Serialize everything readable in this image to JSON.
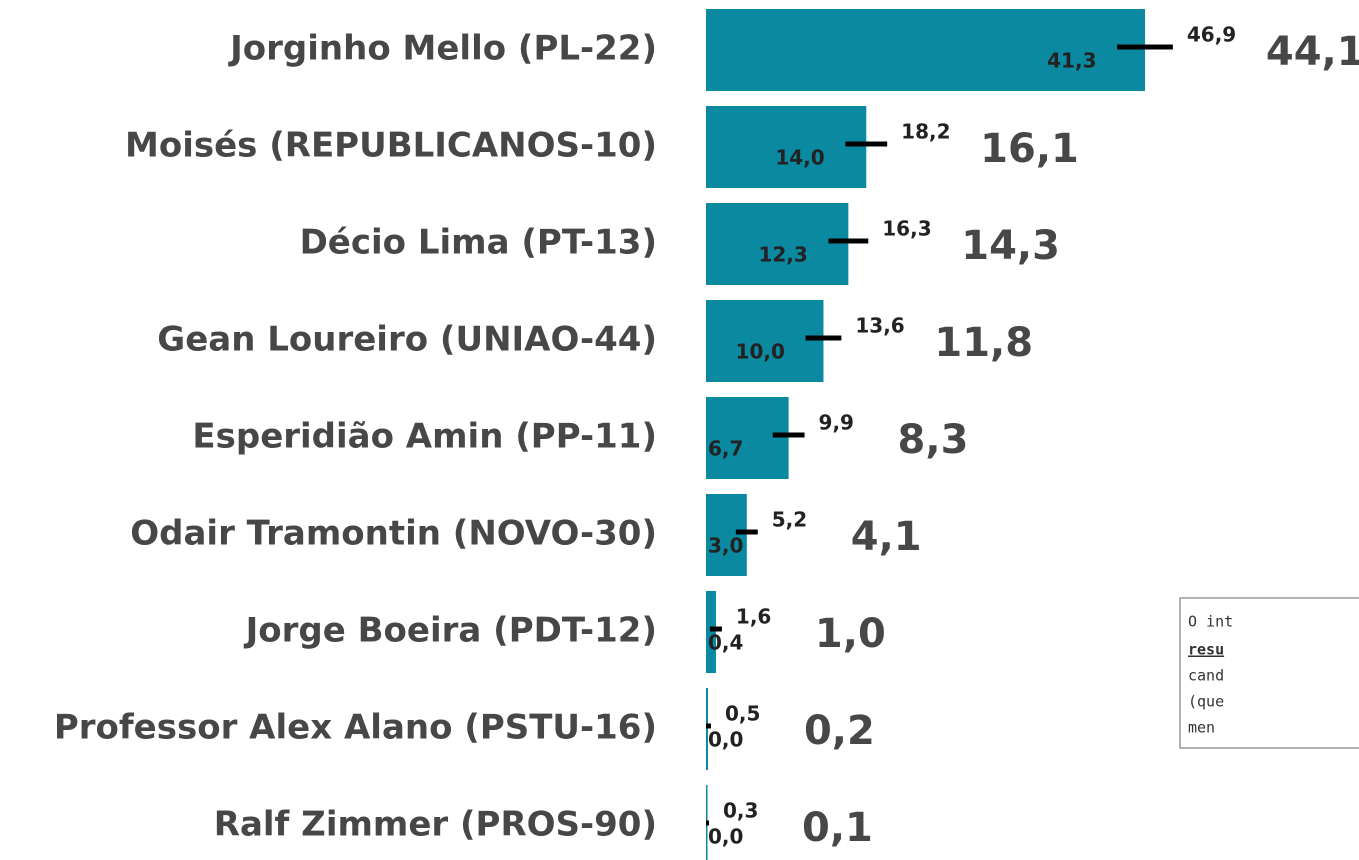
{
  "chart_data": {
    "type": "bar",
    "orientation": "horizontal",
    "color": "#0a89a0",
    "categories": [
      "Jorginho Mello (PL-22)",
      "Moisés (REPUBLICANOS-10)",
      "Décio Lima (PT-13)",
      "Gean Loureiro (UNIAO-44)",
      "Esperidião Amin (PP-11)",
      "Odair Tramontin (NOVO-30)",
      "Jorge Boeira (PDT-12)",
      "Professor Alex Alano (PSTU-16)",
      "Ralf Zimmer (PROS-90)"
    ],
    "values": [
      44.1,
      16.1,
      14.3,
      11.8,
      8.3,
      4.1,
      1.0,
      0.2,
      0.1
    ],
    "value_labels": [
      "44,1",
      "16,1",
      "14,3",
      "11,8",
      "8,3",
      "4,1",
      "1,0",
      "0,2",
      "0,1"
    ],
    "lower": [
      41.3,
      14.0,
      12.3,
      10.0,
      6.7,
      3.0,
      0.4,
      0.0,
      0.0
    ],
    "lower_labels": [
      "41,3",
      "14,0",
      "12,3",
      "10,0",
      "6,7",
      "3,0",
      "0,4",
      "0,0",
      "0,0"
    ],
    "upper": [
      46.9,
      18.2,
      16.3,
      13.6,
      9.9,
      5.2,
      1.6,
      0.5,
      0.3
    ],
    "upper_labels": [
      "46,9",
      "18,2",
      "16,3",
      "13,6",
      "9,9",
      "5,2",
      "1,6",
      "0,5",
      "0,3"
    ]
  },
  "annotation": {
    "lines": [
      "O int",
      "resu",
      "cand",
      "(que",
      "men"
    ]
  }
}
